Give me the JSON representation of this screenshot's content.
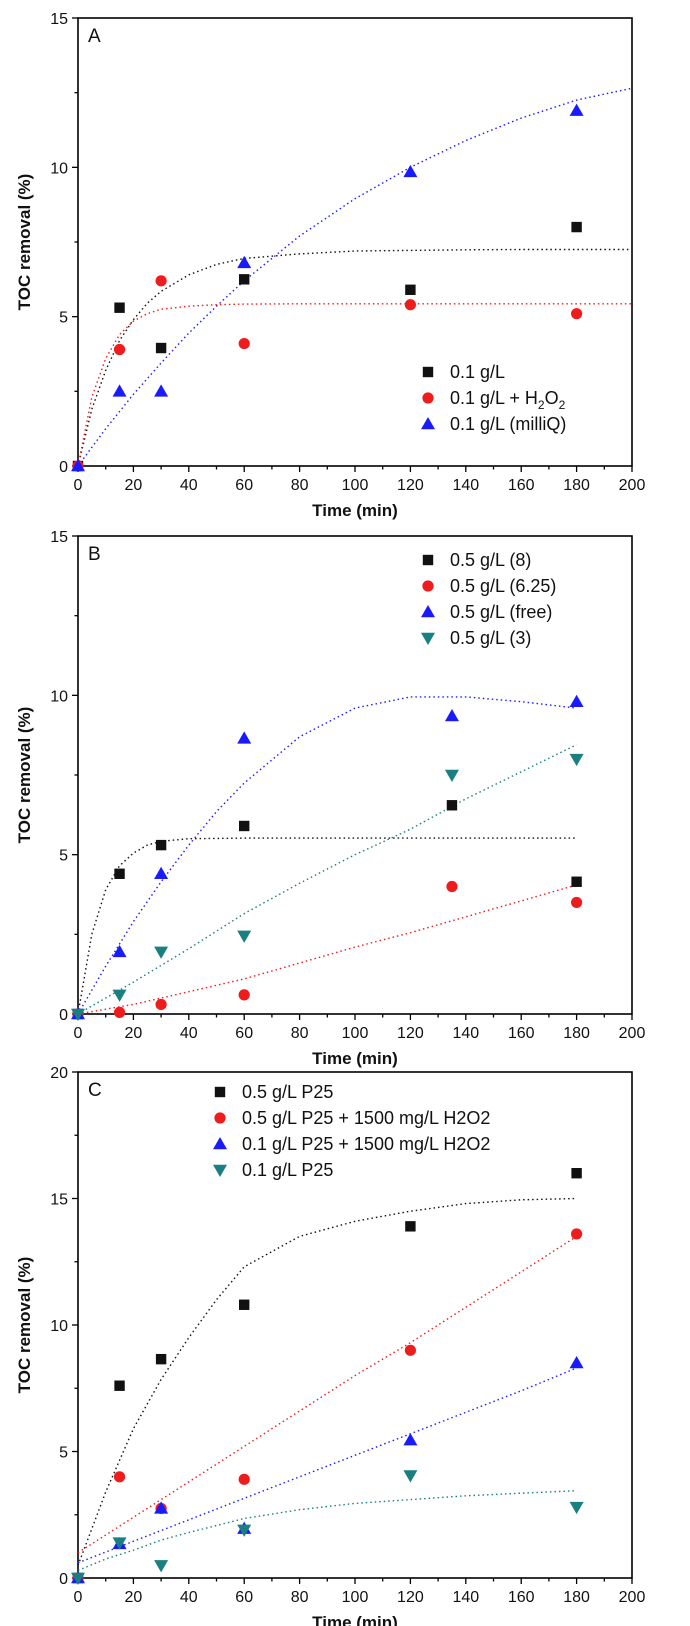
{
  "colors": {
    "black": "#111111",
    "red": "#ee1c1c",
    "blue": "#1a1aff",
    "teal": "#1a7f80"
  },
  "chart_data": [
    {
      "type": "scatter",
      "panel_label": "A",
      "xlabel": "Time (min)",
      "ylabel": "TOC removal (%)",
      "xlim": [
        0,
        200
      ],
      "ylim": [
        0,
        15
      ],
      "xticks": [
        0,
        20,
        40,
        60,
        80,
        100,
        120,
        140,
        160,
        180,
        200
      ],
      "yticks": [
        0,
        5,
        10,
        15
      ],
      "legend_position": "bottom-right",
      "grid": false,
      "series": [
        {
          "name": "0.1 g/L",
          "marker": "square",
          "color": "#111111",
          "x": [
            0,
            15,
            30,
            60,
            120,
            180
          ],
          "y": [
            0,
            5.3,
            3.95,
            6.25,
            5.9,
            8.0
          ],
          "fit": {
            "x": [
              0,
              5,
              10,
              15,
              20,
              25,
              30,
              40,
              50,
              60,
              80,
              100,
              120,
              140,
              160,
              180,
              200
            ],
            "y": [
              0,
              1.9,
              3.2,
              4.2,
              4.9,
              5.45,
              5.85,
              6.4,
              6.75,
              6.95,
              7.1,
              7.2,
              7.22,
              7.24,
              7.25,
              7.25,
              7.25
            ]
          }
        },
        {
          "name": "0.1 g/L + H",
          "name_sub": "2",
          "name_mid": "O",
          "name_sub2": "2",
          "marker": "circle",
          "color": "#ee1c1c",
          "x": [
            0,
            15,
            30,
            60,
            120,
            180
          ],
          "y": [
            0,
            3.9,
            6.2,
            4.1,
            5.4,
            5.1
          ],
          "fit": {
            "x": [
              0,
              5,
              10,
              15,
              20,
              25,
              30,
              40,
              50,
              60,
              80,
              100,
              120,
              140,
              160,
              180,
              200
            ],
            "y": [
              0,
              2.3,
              3.6,
              4.4,
              4.85,
              5.1,
              5.25,
              5.35,
              5.4,
              5.42,
              5.43,
              5.43,
              5.43,
              5.43,
              5.43,
              5.43,
              5.43
            ]
          }
        },
        {
          "name": "0.1 g/L  (milliQ)",
          "marker": "triangle-up",
          "color": "#1a1aff",
          "x": [
            0,
            15,
            30,
            60,
            120,
            180
          ],
          "y": [
            0,
            2.5,
            2.5,
            6.8,
            9.85,
            11.9
          ],
          "fit": {
            "x": [
              0,
              10,
              20,
              30,
              40,
              50,
              60,
              80,
              100,
              120,
              140,
              160,
              180,
              200
            ],
            "y": [
              0,
              1.25,
              2.4,
              3.45,
              4.45,
              5.35,
              6.2,
              7.7,
              8.95,
              10.0,
              10.9,
              11.65,
              12.25,
              12.65
            ]
          }
        }
      ]
    },
    {
      "type": "scatter",
      "panel_label": "B",
      "xlabel": "Time (min)",
      "ylabel": "TOC removal (%)",
      "xlim": [
        0,
        200
      ],
      "ylim": [
        0,
        15
      ],
      "xticks": [
        0,
        20,
        40,
        60,
        80,
        100,
        120,
        140,
        160,
        180,
        200
      ],
      "yticks": [
        0,
        5,
        10,
        15
      ],
      "legend_position": "top-right",
      "grid": false,
      "series": [
        {
          "name": "0.5 g/L (8)",
          "marker": "square",
          "color": "#111111",
          "x": [
            0,
            15,
            30,
            60,
            135,
            180
          ],
          "y": [
            0,
            4.4,
            5.3,
            5.9,
            6.55,
            4.15
          ],
          "fit": {
            "x": [
              0,
              5,
              10,
              15,
              20,
              25,
              30,
              40,
              60,
              80,
              100,
              120,
              140,
              160,
              180
            ],
            "y": [
              0,
              2.5,
              3.9,
              4.65,
              5.05,
              5.3,
              5.42,
              5.5,
              5.52,
              5.52,
              5.52,
              5.52,
              5.52,
              5.52,
              5.52
            ]
          }
        },
        {
          "name": "0.5 g/L (6.25)",
          "marker": "circle",
          "color": "#ee1c1c",
          "x": [
            0,
            15,
            30,
            60,
            135,
            180
          ],
          "y": [
            0,
            0.05,
            0.3,
            0.6,
            4.0,
            3.5
          ],
          "fit": {
            "x": [
              0,
              20,
              40,
              60,
              80,
              100,
              120,
              140,
              160,
              180
            ],
            "y": [
              0,
              0.3,
              0.7,
              1.1,
              1.6,
              2.1,
              2.55,
              3.05,
              3.55,
              4.05
            ]
          }
        },
        {
          "name": "0.5 g/L (free)",
          "marker": "triangle-up",
          "color": "#1a1aff",
          "x": [
            0,
            15,
            30,
            60,
            135,
            180
          ],
          "y": [
            0,
            1.95,
            4.4,
            8.65,
            9.35,
            9.8
          ],
          "fit": {
            "x": [
              0,
              10,
              20,
              30,
              40,
              50,
              60,
              80,
              100,
              120,
              140,
              160,
              180
            ],
            "y": [
              0,
              1.5,
              2.9,
              4.15,
              5.3,
              6.35,
              7.25,
              8.7,
              9.6,
              9.95,
              9.95,
              9.8,
              9.6
            ]
          }
        },
        {
          "name": "0.5 g/L (3)",
          "marker": "triangle-down",
          "color": "#1a7f80",
          "x": [
            0,
            15,
            30,
            60,
            135,
            180
          ],
          "y": [
            0,
            0.6,
            1.95,
            2.45,
            7.5,
            8.0
          ],
          "fit": {
            "x": [
              0,
              20,
              40,
              60,
              80,
              100,
              120,
              140,
              160,
              180
            ],
            "y": [
              0,
              1.0,
              2.05,
              3.15,
              4.1,
              5.0,
              5.8,
              6.75,
              7.6,
              8.45
            ]
          }
        }
      ]
    },
    {
      "type": "scatter",
      "panel_label": "C",
      "xlabel": "Time (min)",
      "ylabel": "TOC removal (%)",
      "xlim": [
        0,
        200
      ],
      "ylim": [
        0,
        20
      ],
      "xticks": [
        0,
        20,
        40,
        60,
        80,
        100,
        120,
        140,
        160,
        180,
        200
      ],
      "yticks": [
        0,
        5,
        10,
        15,
        20
      ],
      "legend_position": "top-center",
      "grid": false,
      "series": [
        {
          "name": "0.5 g/L P25",
          "marker": "square",
          "color": "#111111",
          "x": [
            0,
            15,
            30,
            60,
            120,
            180
          ],
          "y": [
            0,
            7.6,
            8.65,
            10.8,
            13.9,
            16.0
          ],
          "fit": {
            "x": [
              0,
              10,
              20,
              30,
              40,
              50,
              60,
              80,
              100,
              120,
              140,
              160,
              180
            ],
            "y": [
              0.5,
              3.4,
              5.9,
              7.85,
              9.5,
              11.0,
              12.3,
              13.5,
              14.1,
              14.5,
              14.8,
              14.95,
              15.0
            ]
          }
        },
        {
          "name": "0.5 g/L P25 + 1500 mg/L H2O2",
          "marker": "circle",
          "color": "#ee1c1c",
          "x": [
            0,
            15,
            30,
            60,
            120,
            180
          ],
          "y": [
            0,
            4.0,
            2.75,
            3.9,
            9.0,
            13.6
          ],
          "fit": {
            "x": [
              0,
              20,
              40,
              60,
              80,
              100,
              120,
              140,
              160,
              180
            ],
            "y": [
              1.0,
              2.4,
              3.8,
              5.2,
              6.6,
              8.0,
              9.3,
              10.7,
              12.1,
              13.5
            ]
          }
        },
        {
          "name": "0.1 g/L P25 + 1500 mg/L H2O2",
          "marker": "triangle-up",
          "color": "#1a1aff",
          "x": [
            0,
            15,
            30,
            60,
            120,
            180
          ],
          "y": [
            0,
            1.35,
            2.75,
            1.95,
            5.45,
            8.5
          ],
          "fit": {
            "x": [
              0,
              20,
              40,
              60,
              80,
              100,
              120,
              140,
              160,
              180
            ],
            "y": [
              0.6,
              1.45,
              2.3,
              3.15,
              4.0,
              4.85,
              5.7,
              6.55,
              7.4,
              8.3
            ]
          }
        },
        {
          "name": "0.1 g/L P25",
          "marker": "triangle-down",
          "color": "#1a7f80",
          "x": [
            0,
            15,
            30,
            60,
            120,
            180
          ],
          "y": [
            0,
            1.4,
            0.5,
            1.9,
            4.05,
            2.8
          ],
          "fit": {
            "x": [
              0,
              10,
              20,
              30,
              40,
              60,
              80,
              100,
              120,
              140,
              160,
              180
            ],
            "y": [
              0.3,
              0.75,
              1.1,
              1.5,
              1.8,
              2.35,
              2.7,
              2.95,
              3.1,
              3.25,
              3.35,
              3.45
            ]
          }
        }
      ]
    }
  ]
}
